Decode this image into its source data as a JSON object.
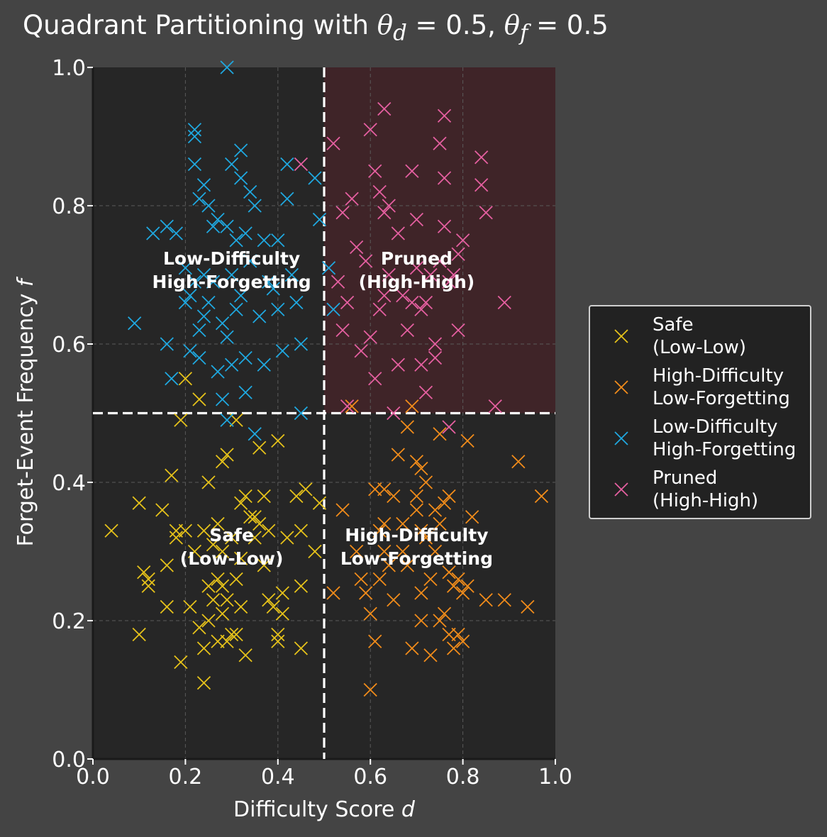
{
  "chart_data": {
    "type": "scatter",
    "title": "Quadrant Partitioning with θd = 0.5,  θf = 0.5",
    "title_parts": {
      "prefix": "Quadrant Partitioning with ",
      "theta_d": "θ",
      "sub_d": "d",
      "eq_d": " = 0.5,  ",
      "theta_f": "θ",
      "sub_f": "f",
      "eq_f": " = 0.5"
    },
    "xlabel": "Difficulty Score",
    "xlabel_var": "d",
    "ylabel": "Forget-Event Frequency",
    "ylabel_var": "f",
    "xlim": [
      0,
      1
    ],
    "ylim": [
      0,
      1
    ],
    "xticks": [
      "0.0",
      "0.2",
      "0.4",
      "0.6",
      "0.8",
      "1.0"
    ],
    "yticks": [
      "0.0",
      "0.2",
      "0.4",
      "0.6",
      "0.8",
      "1.0"
    ],
    "grid": true,
    "thresholds": {
      "theta_d": 0.5,
      "theta_f": 0.5
    },
    "quadrant_labels": {
      "safe": [
        "Safe",
        "(Low-Low)"
      ],
      "hd_lf": [
        "High-Difficulty",
        "Low-Forgetting"
      ],
      "ld_hf": [
        "Low-Difficulty",
        "High-Forgetting"
      ],
      "pruned": [
        "Pruned",
        "(High-High)"
      ]
    },
    "legend_position": "center-right outside",
    "series": [
      {
        "name": "Safe\n(Low-Low)",
        "color": "#e6c21a",
        "points": [
          [
            0.04,
            0.33
          ],
          [
            0.1,
            0.37
          ],
          [
            0.1,
            0.18
          ],
          [
            0.11,
            0.27
          ],
          [
            0.12,
            0.25
          ],
          [
            0.12,
            0.26
          ],
          [
            0.15,
            0.36
          ],
          [
            0.16,
            0.22
          ],
          [
            0.16,
            0.28
          ],
          [
            0.17,
            0.41
          ],
          [
            0.18,
            0.33
          ],
          [
            0.18,
            0.32
          ],
          [
            0.19,
            0.49
          ],
          [
            0.19,
            0.14
          ],
          [
            0.2,
            0.55
          ],
          [
            0.2,
            0.33
          ],
          [
            0.21,
            0.22
          ],
          [
            0.22,
            0.3
          ],
          [
            0.23,
            0.52
          ],
          [
            0.23,
            0.19
          ],
          [
            0.24,
            0.33
          ],
          [
            0.24,
            0.11
          ],
          [
            0.24,
            0.16
          ],
          [
            0.25,
            0.2
          ],
          [
            0.25,
            0.25
          ],
          [
            0.25,
            0.4
          ],
          [
            0.26,
            0.31
          ],
          [
            0.26,
            0.23
          ],
          [
            0.27,
            0.17
          ],
          [
            0.27,
            0.34
          ],
          [
            0.27,
            0.26
          ],
          [
            0.28,
            0.25
          ],
          [
            0.28,
            0.3
          ],
          [
            0.28,
            0.21
          ],
          [
            0.28,
            0.43
          ],
          [
            0.29,
            0.44
          ],
          [
            0.29,
            0.17
          ],
          [
            0.29,
            0.23
          ],
          [
            0.3,
            0.18
          ],
          [
            0.3,
            0.32
          ],
          [
            0.31,
            0.49
          ],
          [
            0.31,
            0.26
          ],
          [
            0.31,
            0.18
          ],
          [
            0.32,
            0.22
          ],
          [
            0.32,
            0.37
          ],
          [
            0.32,
            0.29
          ],
          [
            0.33,
            0.38
          ],
          [
            0.33,
            0.15
          ],
          [
            0.34,
            0.35
          ],
          [
            0.35,
            0.35
          ],
          [
            0.35,
            0.32
          ],
          [
            0.36,
            0.45
          ],
          [
            0.36,
            0.34
          ],
          [
            0.37,
            0.38
          ],
          [
            0.37,
            0.28
          ],
          [
            0.38,
            0.33
          ],
          [
            0.38,
            0.23
          ],
          [
            0.39,
            0.22
          ],
          [
            0.4,
            0.46
          ],
          [
            0.4,
            0.18
          ],
          [
            0.4,
            0.17
          ],
          [
            0.41,
            0.24
          ],
          [
            0.41,
            0.21
          ],
          [
            0.42,
            0.32
          ],
          [
            0.44,
            0.38
          ],
          [
            0.45,
            0.16
          ],
          [
            0.45,
            0.33
          ],
          [
            0.45,
            0.25
          ],
          [
            0.46,
            0.39
          ],
          [
            0.48,
            0.3
          ],
          [
            0.49,
            0.37
          ]
        ]
      },
      {
        "name": "High-Difficulty\nLow-Forgetting",
        "color": "#f28c1a",
        "points": [
          [
            0.52,
            0.24
          ],
          [
            0.54,
            0.36
          ],
          [
            0.56,
            0.51
          ],
          [
            0.57,
            0.3
          ],
          [
            0.58,
            0.26
          ],
          [
            0.59,
            0.24
          ],
          [
            0.6,
            0.21
          ],
          [
            0.6,
            0.1
          ],
          [
            0.61,
            0.17
          ],
          [
            0.61,
            0.39
          ],
          [
            0.62,
            0.26
          ],
          [
            0.62,
            0.33
          ],
          [
            0.63,
            0.39
          ],
          [
            0.63,
            0.34
          ],
          [
            0.63,
            0.3
          ],
          [
            0.64,
            0.28
          ],
          [
            0.65,
            0.38
          ],
          [
            0.65,
            0.23
          ],
          [
            0.66,
            0.44
          ],
          [
            0.67,
            0.3
          ],
          [
            0.67,
            0.34
          ],
          [
            0.68,
            0.48
          ],
          [
            0.68,
            0.28
          ],
          [
            0.69,
            0.16
          ],
          [
            0.69,
            0.51
          ],
          [
            0.7,
            0.43
          ],
          [
            0.7,
            0.38
          ],
          [
            0.7,
            0.36
          ],
          [
            0.71,
            0.42
          ],
          [
            0.71,
            0.33
          ],
          [
            0.71,
            0.24
          ],
          [
            0.71,
            0.2
          ],
          [
            0.72,
            0.4
          ],
          [
            0.72,
            0.32
          ],
          [
            0.73,
            0.15
          ],
          [
            0.73,
            0.26
          ],
          [
            0.74,
            0.3
          ],
          [
            0.74,
            0.36
          ],
          [
            0.75,
            0.47
          ],
          [
            0.75,
            0.2
          ],
          [
            0.75,
            0.34
          ],
          [
            0.76,
            0.37
          ],
          [
            0.76,
            0.21
          ],
          [
            0.77,
            0.38
          ],
          [
            0.77,
            0.18
          ],
          [
            0.77,
            0.27
          ],
          [
            0.78,
            0.25
          ],
          [
            0.78,
            0.16
          ],
          [
            0.79,
            0.26
          ],
          [
            0.79,
            0.18
          ],
          [
            0.8,
            0.24
          ],
          [
            0.8,
            0.17
          ],
          [
            0.81,
            0.46
          ],
          [
            0.81,
            0.25
          ],
          [
            0.82,
            0.35
          ],
          [
            0.85,
            0.23
          ],
          [
            0.89,
            0.23
          ],
          [
            0.92,
            0.43
          ],
          [
            0.94,
            0.22
          ],
          [
            0.97,
            0.38
          ]
        ]
      },
      {
        "name": "Low-Difficulty\nHigh-Forgetting",
        "color": "#1fa8e0",
        "points": [
          [
            0.09,
            0.63
          ],
          [
            0.13,
            0.76
          ],
          [
            0.16,
            0.6
          ],
          [
            0.16,
            0.77
          ],
          [
            0.17,
            0.55
          ],
          [
            0.18,
            0.76
          ],
          [
            0.2,
            0.66
          ],
          [
            0.2,
            0.71
          ],
          [
            0.21,
            0.67
          ],
          [
            0.21,
            0.59
          ],
          [
            0.22,
            0.9
          ],
          [
            0.22,
            0.91
          ],
          [
            0.22,
            0.86
          ],
          [
            0.22,
            0.69
          ],
          [
            0.23,
            0.81
          ],
          [
            0.23,
            0.62
          ],
          [
            0.23,
            0.58
          ],
          [
            0.24,
            0.83
          ],
          [
            0.24,
            0.64
          ],
          [
            0.24,
            0.7
          ],
          [
            0.25,
            0.8
          ],
          [
            0.25,
            0.66
          ],
          [
            0.26,
            0.77
          ],
          [
            0.26,
            0.69
          ],
          [
            0.27,
            0.78
          ],
          [
            0.27,
            0.56
          ],
          [
            0.28,
            0.63
          ],
          [
            0.28,
            0.52
          ],
          [
            0.29,
            0.77
          ],
          [
            0.29,
            0.61
          ],
          [
            0.29,
            0.49
          ],
          [
            0.3,
            0.86
          ],
          [
            0.3,
            0.7
          ],
          [
            0.3,
            0.57
          ],
          [
            0.31,
            0.75
          ],
          [
            0.31,
            0.65
          ],
          [
            0.32,
            0.88
          ],
          [
            0.32,
            0.84
          ],
          [
            0.32,
            0.67
          ],
          [
            0.33,
            0.76
          ],
          [
            0.33,
            0.53
          ],
          [
            0.33,
            0.58
          ],
          [
            0.34,
            0.82
          ],
          [
            0.34,
            0.72
          ],
          [
            0.35,
            0.8
          ],
          [
            0.35,
            0.47
          ],
          [
            0.36,
            0.64
          ],
          [
            0.37,
            0.75
          ],
          [
            0.37,
            0.57
          ],
          [
            0.38,
            0.69
          ],
          [
            0.39,
            0.68
          ],
          [
            0.4,
            0.75
          ],
          [
            0.4,
            0.65
          ],
          [
            0.41,
            0.59
          ],
          [
            0.42,
            0.86
          ],
          [
            0.42,
            0.81
          ],
          [
            0.43,
            0.7
          ],
          [
            0.44,
            0.66
          ],
          [
            0.45,
            0.6
          ],
          [
            0.45,
            0.5
          ],
          [
            0.48,
            0.84
          ],
          [
            0.49,
            0.78
          ],
          [
            0.51,
            0.71
          ],
          [
            0.52,
            0.65
          ],
          [
            0.29,
            1.0
          ]
        ]
      },
      {
        "name": "Pruned\n(High-High)",
        "color": "#e55fa0",
        "points": [
          [
            0.45,
            0.86
          ],
          [
            0.52,
            0.89
          ],
          [
            0.53,
            0.69
          ],
          [
            0.54,
            0.62
          ],
          [
            0.54,
            0.79
          ],
          [
            0.55,
            0.66
          ],
          [
            0.56,
            0.81
          ],
          [
            0.57,
            0.74
          ],
          [
            0.58,
            0.59
          ],
          [
            0.59,
            0.72
          ],
          [
            0.6,
            0.91
          ],
          [
            0.6,
            0.61
          ],
          [
            0.61,
            0.85
          ],
          [
            0.61,
            0.55
          ],
          [
            0.62,
            0.82
          ],
          [
            0.62,
            0.65
          ],
          [
            0.63,
            0.94
          ],
          [
            0.63,
            0.79
          ],
          [
            0.63,
            0.67
          ],
          [
            0.64,
            0.8
          ],
          [
            0.64,
            0.7
          ],
          [
            0.65,
            0.5
          ],
          [
            0.66,
            0.57
          ],
          [
            0.66,
            0.76
          ],
          [
            0.67,
            0.67
          ],
          [
            0.68,
            0.62
          ],
          [
            0.69,
            0.85
          ],
          [
            0.69,
            0.66
          ],
          [
            0.7,
            0.78
          ],
          [
            0.7,
            0.71
          ],
          [
            0.71,
            0.57
          ],
          [
            0.71,
            0.65
          ],
          [
            0.72,
            0.53
          ],
          [
            0.72,
            0.66
          ],
          [
            0.73,
            0.7
          ],
          [
            0.74,
            0.58
          ],
          [
            0.74,
            0.6
          ],
          [
            0.75,
            0.72
          ],
          [
            0.75,
            0.89
          ],
          [
            0.76,
            0.93
          ],
          [
            0.76,
            0.84
          ],
          [
            0.76,
            0.77
          ],
          [
            0.77,
            0.69
          ],
          [
            0.77,
            0.48
          ],
          [
            0.78,
            0.7
          ],
          [
            0.79,
            0.62
          ],
          [
            0.79,
            0.73
          ],
          [
            0.8,
            0.75
          ],
          [
            0.84,
            0.83
          ],
          [
            0.84,
            0.87
          ],
          [
            0.85,
            0.79
          ],
          [
            0.87,
            0.51
          ],
          [
            0.89,
            0.66
          ],
          [
            0.55,
            0.51
          ]
        ]
      }
    ]
  }
}
